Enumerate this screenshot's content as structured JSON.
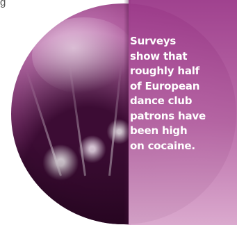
{
  "fragment_text": "g",
  "callout": {
    "text": "Surveys show that roughly half of European dance club patrons have been high on cocaine.",
    "lines": [
      "Surveys",
      "show that",
      "roughly half",
      "of European",
      "dance club",
      "patrons have",
      "been high",
      "on cocaine."
    ]
  },
  "colors": {
    "panel_top": "#9c3a8a",
    "panel_bottom": "#d9a6cc",
    "globe_core": "#a85296",
    "text": "#ffffff"
  }
}
